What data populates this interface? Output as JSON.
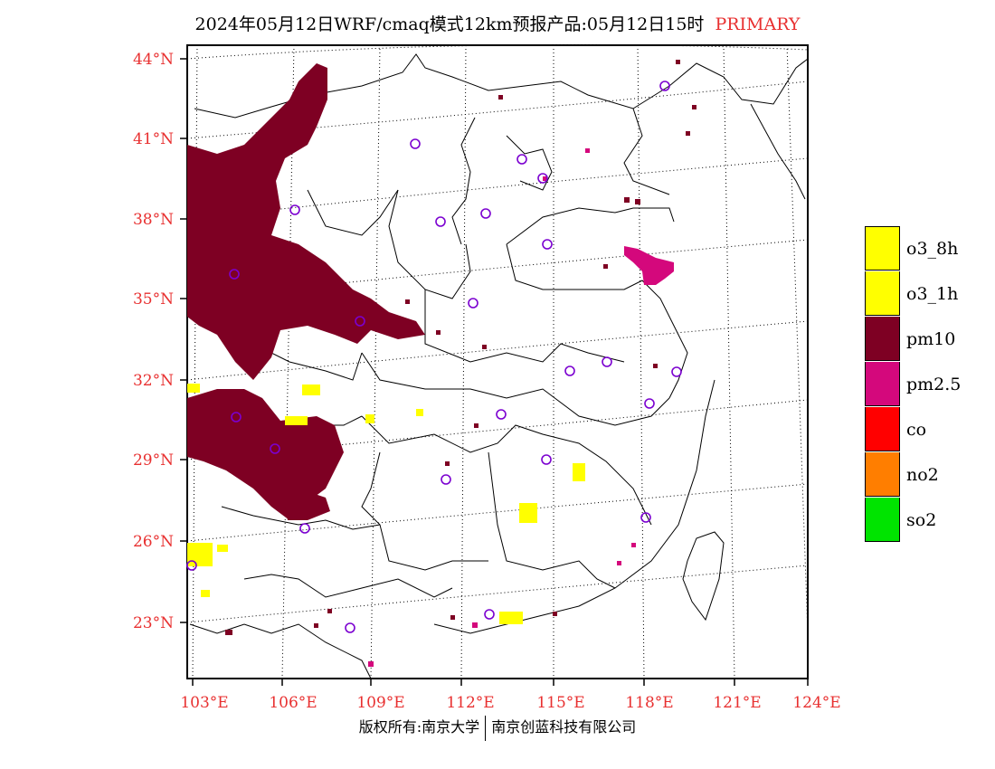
{
  "header": {
    "title": "2024年05月12日WRF/cmaq模式12km预报产品:05月12日15时",
    "label": "PRIMARY"
  },
  "map": {
    "lat_labels": [
      "44°N",
      "41°N",
      "38°N",
      "35°N",
      "32°N",
      "29°N",
      "26°N",
      "23°N"
    ],
    "lon_labels": [
      "103°E",
      "106°E",
      "109°E",
      "112°E",
      "115°E",
      "118°E",
      "121°E",
      "124°E"
    ],
    "lat_range": [
      21,
      44.5
    ],
    "lon_range": [
      102.7,
      124
    ]
  },
  "legend": {
    "items": [
      {
        "label": "o3_8h",
        "color": "#ffff00"
      },
      {
        "label": "o3_1h",
        "color": "#ffff00"
      },
      {
        "label": "pm10",
        "color": "#7e0023"
      },
      {
        "label": "pm2.5",
        "color": "#d4087c"
      },
      {
        "label": "co",
        "color": "#ff0000"
      },
      {
        "label": "no2",
        "color": "#ff7e00"
      },
      {
        "label": "so2",
        "color": "#00e400"
      }
    ]
  },
  "footer": {
    "copyright_left": "版权所有:南京大学",
    "copyright_right": "南京创蓝科技有限公司"
  }
}
